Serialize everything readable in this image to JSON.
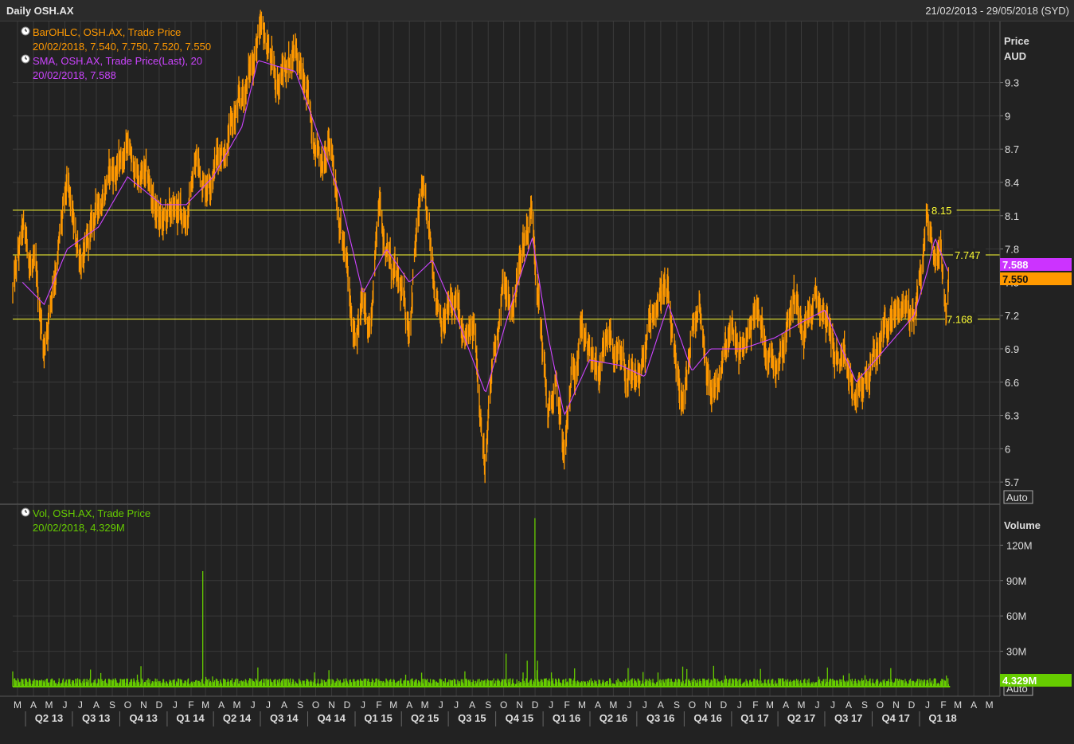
{
  "header": {
    "title": "Daily OSH.AX",
    "date_range": "21/02/2013 - 29/05/2018 (SYD)"
  },
  "colors": {
    "background": "#222222",
    "grid": "#3a3a3a",
    "price_bars": "#ff9900",
    "sma": "#cc44ff",
    "volume": "#66cc00",
    "level_lines": "#ffff33",
    "axis_text": "#dddddd"
  },
  "price_panel": {
    "axis_title_line1": "Price",
    "axis_title_line2": "AUD",
    "auto_label": "Auto",
    "legend": [
      {
        "icon": "clock-icon",
        "line1": "BarOHLC, OSH.AX, Trade Price",
        "line2": "20/02/2018, 7.540, 7.750, 7.520, 7.550"
      },
      {
        "icon": "clock-icon",
        "line1": "SMA, OSH.AX, Trade Price(Last),  20",
        "line2": "20/02/2018, 7.588"
      }
    ],
    "last_price_badge": "7.550",
    "sma_badge": "7.588"
  },
  "volume_panel": {
    "axis_title": "Volume",
    "auto_label": "Auto",
    "legend": {
      "icon": "clock-icon",
      "line1": "Vol, OSH.AX, Trade Price",
      "line2": "20/02/2018, 4.329M"
    },
    "last_volume_badge": "4.329M"
  },
  "chart_data": {
    "type": "ohlc_bar_with_sma_and_volume",
    "symbol": "OSH.AX",
    "price_axis": {
      "ylim": [
        5.5,
        9.85
      ],
      "ticks": [
        5.7,
        6,
        6.3,
        6.6,
        6.9,
        7.2,
        7.5,
        7.8,
        8.1,
        8.4,
        8.7,
        9,
        9.3
      ],
      "tick_labels": [
        "5.7",
        "6",
        "6.3",
        "6.6",
        "6.9",
        "7.2",
        "7.5",
        "7.8",
        "8.1",
        "8.4",
        "8.7",
        "9",
        "9.3"
      ]
    },
    "volume_axis": {
      "ylim": [
        0,
        150
      ],
      "unit": "M",
      "ticks": [
        30,
        60,
        90,
        120
      ],
      "tick_labels": [
        "30M",
        "60M",
        "90M",
        "120M"
      ]
    },
    "horizontal_levels": [
      {
        "value": 8.15,
        "label": "8.15"
      },
      {
        "value": 7.747,
        "label": "7.747"
      },
      {
        "value": 7.168,
        "label": "7.168"
      }
    ],
    "month_ticks": [
      "M",
      "A",
      "M",
      "J",
      "J",
      "A",
      "S",
      "O",
      "N",
      "D",
      "J",
      "F",
      "M",
      "A",
      "M",
      "J",
      "J",
      "A",
      "S",
      "O",
      "N",
      "D",
      "J",
      "F",
      "M",
      "A",
      "M",
      "J",
      "J",
      "A",
      "S",
      "O",
      "N",
      "D",
      "J",
      "F",
      "M",
      "A",
      "M",
      "J",
      "J",
      "A",
      "S",
      "O",
      "N",
      "D",
      "J",
      "F",
      "M",
      "A",
      "M",
      "J",
      "J",
      "A",
      "S",
      "O",
      "N",
      "D",
      "J",
      "F",
      "M",
      "A",
      "M"
    ],
    "quarter_labels": [
      "Q2 13",
      "Q3 13",
      "Q4 13",
      "Q1 14",
      "Q2 14",
      "Q3 14",
      "Q4 14",
      "Q1 15",
      "Q2 15",
      "Q3 15",
      "Q4 15",
      "Q1 16",
      "Q2 16",
      "Q3 16",
      "Q4 16",
      "Q1 17",
      "Q2 17",
      "Q3 17",
      "Q4 17",
      "Q1 18"
    ],
    "price_path_points": [
      [
        "2013-03-01",
        7.4
      ],
      [
        "2013-03-20",
        7.9
      ],
      [
        "2013-04-15",
        7.5
      ],
      [
        "2013-05-01",
        6.9
      ],
      [
        "2013-05-20",
        7.6
      ],
      [
        "2013-06-15",
        8.3
      ],
      [
        "2013-07-01",
        7.8
      ],
      [
        "2013-07-20",
        7.7
      ],
      [
        "2013-08-15",
        8.2
      ],
      [
        "2013-09-01",
        8.5
      ],
      [
        "2013-09-20",
        8.5
      ],
      [
        "2013-10-10",
        8.8
      ],
      [
        "2013-10-20",
        8.5
      ],
      [
        "2013-11-15",
        8.4
      ],
      [
        "2013-12-15",
        8.0
      ],
      [
        "2014-01-10",
        8.1
      ],
      [
        "2014-02-01",
        8.1
      ],
      [
        "2014-02-20",
        8.6
      ],
      [
        "2014-03-10",
        8.4
      ],
      [
        "2014-03-25",
        8.6
      ],
      [
        "2014-04-20",
        8.8
      ],
      [
        "2014-05-20",
        9.1
      ],
      [
        "2014-06-10",
        9.5
      ],
      [
        "2014-06-20",
        9.7
      ],
      [
        "2014-07-10",
        9.6
      ],
      [
        "2014-07-25",
        9.3
      ],
      [
        "2014-08-20",
        9.5
      ],
      [
        "2014-09-01",
        9.7
      ],
      [
        "2014-09-20",
        9.2
      ],
      [
        "2014-10-10",
        8.8
      ],
      [
        "2014-10-25",
        8.6
      ],
      [
        "2014-11-10",
        8.7
      ],
      [
        "2014-11-25",
        8.2
      ],
      [
        "2014-12-10",
        7.6
      ],
      [
        "2014-12-20",
        7.0
      ],
      [
        "2015-01-10",
        7.3
      ],
      [
        "2015-01-25",
        7.1
      ],
      [
        "2015-02-10",
        8.3
      ],
      [
        "2015-02-25",
        7.8
      ],
      [
        "2015-03-20",
        7.4
      ],
      [
        "2015-04-10",
        7.1
      ],
      [
        "2015-04-20",
        7.8
      ],
      [
        "2015-05-05",
        8.3
      ],
      [
        "2015-05-25",
        7.6
      ],
      [
        "2015-06-15",
        7.2
      ],
      [
        "2015-07-10",
        7.3
      ],
      [
        "2015-07-25",
        6.9
      ],
      [
        "2015-08-15",
        7.0
      ],
      [
        "2015-08-25",
        6.5
      ],
      [
        "2015-09-05",
        5.8
      ],
      [
        "2015-09-20",
        6.8
      ],
      [
        "2015-10-10",
        7.5
      ],
      [
        "2015-10-25",
        7.2
      ],
      [
        "2015-11-15",
        7.8
      ],
      [
        "2015-12-05",
        8.2
      ],
      [
        "2015-12-20",
        7.2
      ],
      [
        "2016-01-05",
        6.3
      ],
      [
        "2016-01-20",
        6.5
      ],
      [
        "2016-02-05",
        5.9
      ],
      [
        "2016-02-20",
        6.6
      ],
      [
        "2016-03-10",
        7.2
      ],
      [
        "2016-03-25",
        6.8
      ],
      [
        "2016-04-15",
        6.6
      ],
      [
        "2016-05-05",
        7.0
      ],
      [
        "2016-05-25",
        6.7
      ],
      [
        "2016-06-20",
        6.5
      ],
      [
        "2016-07-10",
        6.8
      ],
      [
        "2016-07-25",
        7.2
      ],
      [
        "2016-08-15",
        7.5
      ],
      [
        "2016-08-25",
        7.3
      ],
      [
        "2016-09-10",
        6.5
      ],
      [
        "2016-09-25",
        6.4
      ],
      [
        "2016-10-10",
        7.0
      ],
      [
        "2016-10-25",
        7.3
      ],
      [
        "2016-11-15",
        6.5
      ],
      [
        "2016-12-05",
        6.7
      ],
      [
        "2016-12-25",
        7.0
      ],
      [
        "2017-01-15",
        6.8
      ],
      [
        "2017-02-10",
        7.3
      ],
      [
        "2017-02-25",
        7.0
      ],
      [
        "2017-03-20",
        6.8
      ],
      [
        "2017-04-10",
        7.1
      ],
      [
        "2017-04-25",
        7.4
      ],
      [
        "2017-05-15",
        7.2
      ],
      [
        "2017-06-05",
        7.3
      ],
      [
        "2017-06-25",
        7.2
      ],
      [
        "2017-07-20",
        6.8
      ],
      [
        "2017-08-10",
        6.6
      ],
      [
        "2017-08-25",
        6.4
      ],
      [
        "2017-09-10",
        6.6
      ],
      [
        "2017-10-01",
        6.8
      ],
      [
        "2017-10-20",
        7.1
      ],
      [
        "2017-11-10",
        7.2
      ],
      [
        "2017-11-25",
        7.3
      ],
      [
        "2017-12-15",
        7.2
      ],
      [
        "2018-01-01",
        7.7
      ],
      [
        "2018-01-10",
        8.1
      ],
      [
        "2018-01-25",
        7.7
      ],
      [
        "2018-02-05",
        7.9
      ],
      [
        "2018-02-15",
        7.3
      ],
      [
        "2018-02-20",
        7.55
      ]
    ],
    "sma_path_points": [
      [
        "2013-03-20",
        7.5
      ],
      [
        "2013-05-01",
        7.3
      ],
      [
        "2013-06-15",
        7.8
      ],
      [
        "2013-08-15",
        8.0
      ],
      [
        "2013-10-10",
        8.45
      ],
      [
        "2013-12-15",
        8.2
      ],
      [
        "2014-02-01",
        8.2
      ],
      [
        "2014-03-25",
        8.45
      ],
      [
        "2014-05-20",
        8.9
      ],
      [
        "2014-06-20",
        9.5
      ],
      [
        "2014-07-25",
        9.45
      ],
      [
        "2014-09-01",
        9.4
      ],
      [
        "2014-10-10",
        8.9
      ],
      [
        "2014-11-25",
        8.3
      ],
      [
        "2015-01-10",
        7.4
      ],
      [
        "2015-02-25",
        7.8
      ],
      [
        "2015-04-10",
        7.5
      ],
      [
        "2015-05-25",
        7.7
      ],
      [
        "2015-07-10",
        7.2
      ],
      [
        "2015-09-05",
        6.5
      ],
      [
        "2015-10-25",
        7.3
      ],
      [
        "2015-12-05",
        7.9
      ],
      [
        "2016-01-05",
        7.0
      ],
      [
        "2016-02-05",
        6.3
      ],
      [
        "2016-03-25",
        6.8
      ],
      [
        "2016-05-25",
        6.75
      ],
      [
        "2016-07-10",
        6.65
      ],
      [
        "2016-08-25",
        7.3
      ],
      [
        "2016-10-10",
        6.7
      ],
      [
        "2016-11-15",
        6.9
      ],
      [
        "2017-01-15",
        6.9
      ],
      [
        "2017-03-20",
        7.0
      ],
      [
        "2017-05-15",
        7.15
      ],
      [
        "2017-06-25",
        7.25
      ],
      [
        "2017-08-25",
        6.6
      ],
      [
        "2017-10-20",
        6.9
      ],
      [
        "2017-12-15",
        7.2
      ],
      [
        "2018-01-10",
        7.6
      ],
      [
        "2018-01-25",
        7.9
      ],
      [
        "2018-02-20",
        7.588
      ]
    ],
    "volume": {
      "baseline_typical_m": 4,
      "spikes": [
        {
          "date": "2014-03-05",
          "value_m": 98
        },
        {
          "date": "2015-10-15",
          "value_m": 28
        },
        {
          "date": "2015-11-25",
          "value_m": 22
        },
        {
          "date": "2015-12-10",
          "value_m": 143
        },
        {
          "date": "2015-12-15",
          "value_m": 22
        },
        {
          "date": "2016-08-05",
          "value_m": 12
        },
        {
          "date": "2014-11-05",
          "value_m": 14
        }
      ],
      "last": {
        "date": "2018-02-20",
        "value_m": 4.329
      }
    }
  }
}
